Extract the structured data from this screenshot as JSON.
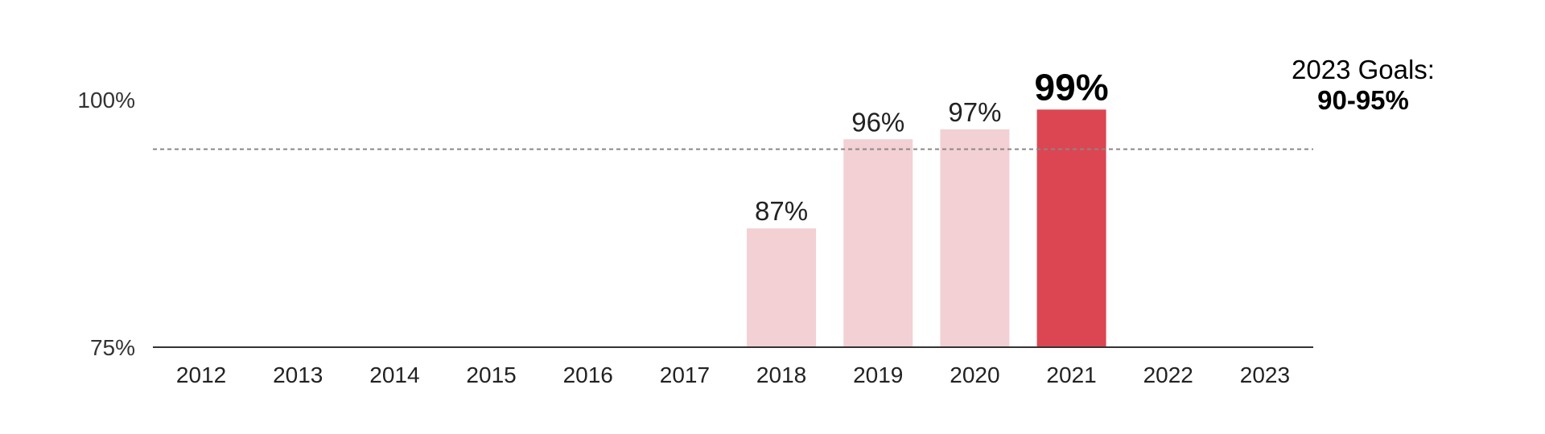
{
  "chart_data": {
    "type": "bar",
    "categories": [
      "2012",
      "2013",
      "2014",
      "2015",
      "2016",
      "2017",
      "2018",
      "2019",
      "2020",
      "2021",
      "2022",
      "2023"
    ],
    "values": [
      null,
      null,
      null,
      null,
      null,
      null,
      87,
      96,
      97,
      99,
      null,
      null
    ],
    "data_labels": [
      "",
      "",
      "",
      "",
      "",
      "",
      "87%",
      "96%",
      "97%",
      "99%",
      "",
      ""
    ],
    "highlight_category": "2021",
    "ylim": [
      75,
      100
    ],
    "y_tick_labels": [
      "75%",
      "100%"
    ],
    "y_ticks": [
      75,
      100
    ],
    "reference_line": 95,
    "colors": {
      "bar": "#f2d0d3",
      "highlight": "#dc4652",
      "axis": "#333333",
      "reference": "#888888"
    },
    "grid": false,
    "goal": {
      "label": "2023 Goals:",
      "value": "90-95%"
    }
  }
}
